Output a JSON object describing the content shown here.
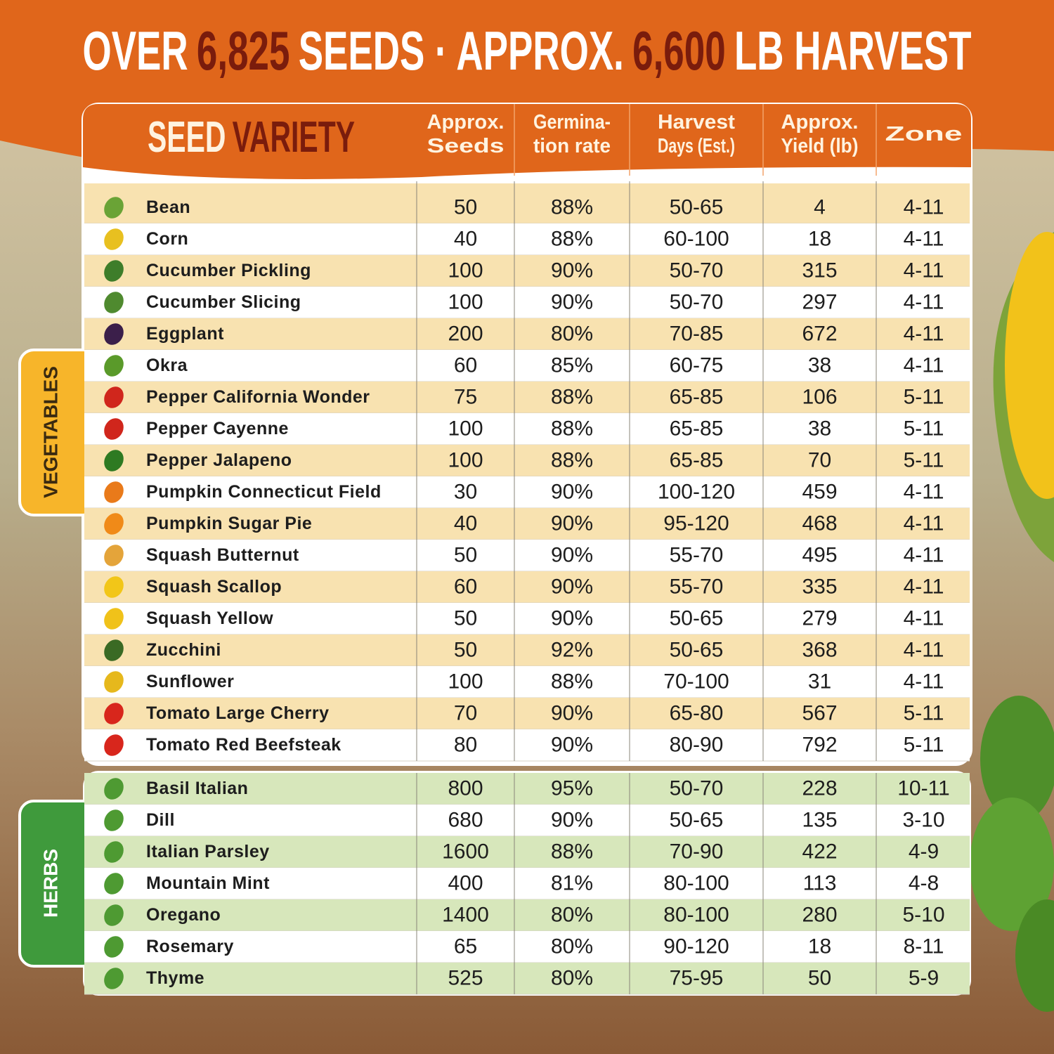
{
  "title": [
    {
      "text": "OVER",
      "highlight": false
    },
    {
      "text": "6,825",
      "highlight": true
    },
    {
      "text": "SEEDS · APPROX.",
      "highlight": false
    },
    {
      "text": "6,600",
      "highlight": true
    },
    {
      "text": "LB HARVEST",
      "highlight": false
    }
  ],
  "header": {
    "seed_variety": [
      "SEED",
      "VARIETY"
    ],
    "columns": [
      [
        "Approx.",
        "Seeds"
      ],
      [
        "Germina-",
        "tion rate"
      ],
      [
        "Harvest",
        "Days (Est.)"
      ],
      [
        "Approx.",
        "Yield (lb)"
      ],
      [
        "Zone"
      ]
    ]
  },
  "sections": [
    {
      "label": "VEGETABLES",
      "rows": [
        [
          "Bean",
          "50",
          "88%",
          "50-65",
          "4",
          "4-11"
        ],
        [
          "Corn",
          "40",
          "88%",
          "60-100",
          "18",
          "4-11"
        ],
        [
          "Cucumber Pickling",
          "100",
          "90%",
          "50-70",
          "315",
          "4-11"
        ],
        [
          "Cucumber Slicing",
          "100",
          "90%",
          "50-70",
          "297",
          "4-11"
        ],
        [
          "Eggplant",
          "200",
          "80%",
          "70-85",
          "672",
          "4-11"
        ],
        [
          "Okra",
          "60",
          "85%",
          "60-75",
          "38",
          "4-11"
        ],
        [
          "Pepper California Wonder",
          "75",
          "88%",
          "65-85",
          "106",
          "5-11"
        ],
        [
          "Pepper Cayenne",
          "100",
          "88%",
          "65-85",
          "38",
          "5-11"
        ],
        [
          "Pepper Jalapeno",
          "100",
          "88%",
          "65-85",
          "70",
          "5-11"
        ],
        [
          "Pumpkin Connecticut Field",
          "30",
          "90%",
          "100-120",
          "459",
          "4-11"
        ],
        [
          "Pumpkin Sugar Pie",
          "40",
          "90%",
          "95-120",
          "468",
          "4-11"
        ],
        [
          "Squash Butternut",
          "50",
          "90%",
          "55-70",
          "495",
          "4-11"
        ],
        [
          "Squash Scallop",
          "60",
          "90%",
          "55-70",
          "335",
          "4-11"
        ],
        [
          "Squash Yellow",
          "50",
          "90%",
          "50-65",
          "279",
          "4-11"
        ],
        [
          "Zucchini",
          "50",
          "92%",
          "50-65",
          "368",
          "4-11"
        ],
        [
          "Sunflower",
          "100",
          "88%",
          "70-100",
          "31",
          "4-11"
        ],
        [
          "Tomato Large Cherry",
          "70",
          "90%",
          "65-80",
          "567",
          "5-11"
        ],
        [
          "Tomato Red Beefsteak",
          "80",
          "90%",
          "80-90",
          "792",
          "5-11"
        ]
      ]
    },
    {
      "label": "HERBS",
      "rows": [
        [
          "Basil Italian",
          "800",
          "95%",
          "50-70",
          "228",
          "10-11"
        ],
        [
          "Dill",
          "680",
          "90%",
          "50-65",
          "135",
          "3-10"
        ],
        [
          "Italian Parsley",
          "1600",
          "88%",
          "70-90",
          "422",
          "4-9"
        ],
        [
          "Mountain Mint",
          "400",
          "81%",
          "80-100",
          "113",
          "4-8"
        ],
        [
          "Oregano",
          "1400",
          "80%",
          "80-100",
          "280",
          "5-10"
        ],
        [
          "Rosemary",
          "65",
          "80%",
          "90-120",
          "18",
          "8-11"
        ],
        [
          "Thyme",
          "525",
          "80%",
          "75-95",
          "50",
          "5-9"
        ]
      ]
    }
  ]
}
